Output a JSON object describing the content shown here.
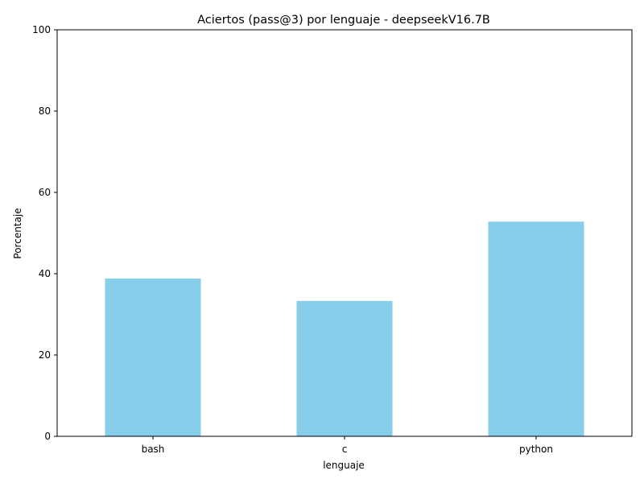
{
  "chart_data": {
    "type": "bar",
    "title": "Aciertos (pass@3) por lenguaje - deepseekV16.7B",
    "xlabel": "lenguaje",
    "ylabel": "Porcentaje",
    "categories": [
      "bash",
      "c",
      "python"
    ],
    "values": [
      38.8,
      33.3,
      52.8
    ],
    "ylim": [
      0,
      100
    ],
    "yticks": [
      "0",
      "20",
      "40",
      "60",
      "80",
      "100"
    ],
    "bar_color": "#87CEEB",
    "grid": false,
    "legend": "none"
  }
}
